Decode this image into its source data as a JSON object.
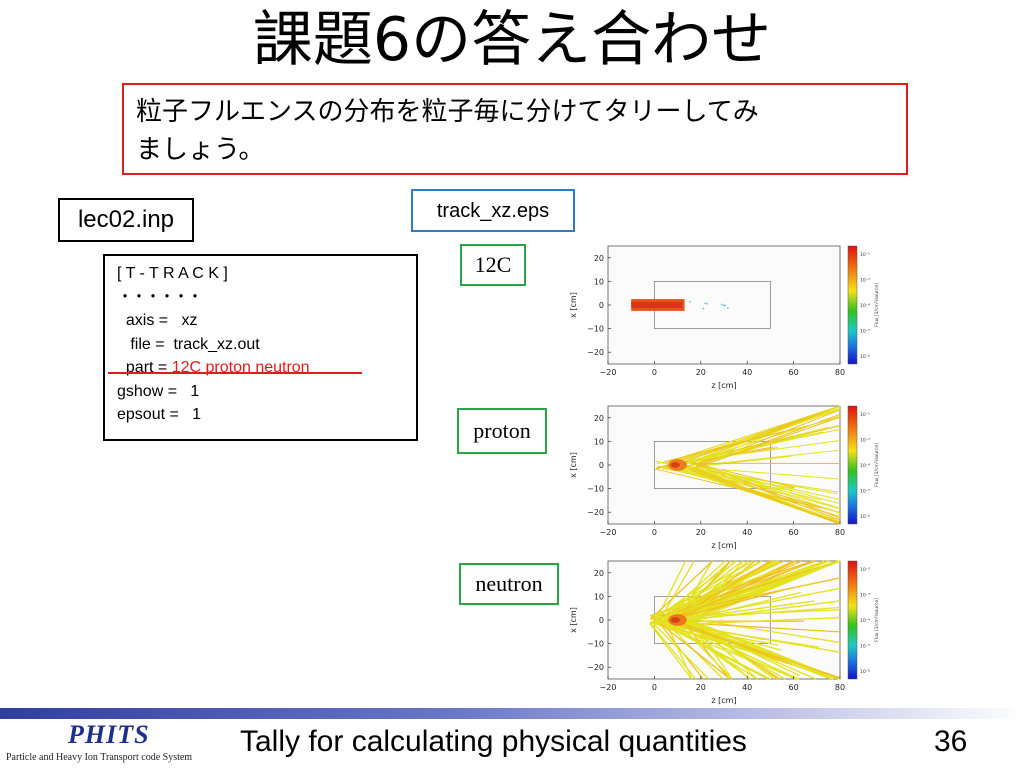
{
  "title": "課題6の答え合わせ",
  "instruction": {
    "line1": "粒子フルエンスの分布を粒子毎に分けてタリーしてみ",
    "line2": "ましょう。"
  },
  "input_file_label": "lec02.inp",
  "eps_file_label": "track_xz.eps",
  "code": {
    "section": "[ T - T R A C K ]",
    "dots": "・・・・・・",
    "axis": "  axis =   xz",
    "file": "   file =  track_xz.out",
    "part_prefix": "  part = ",
    "part_value": "12C proton neutron",
    "gshow": "gshow =   1",
    "epsout": "epsout =   1"
  },
  "plots": [
    {
      "label": "12C"
    },
    {
      "label": "proton"
    },
    {
      "label": "neutron"
    }
  ],
  "axes": {
    "xlabel": "z [cm]",
    "ylabel": "x [cm]",
    "colorbar_label": "Flux [1/cm²/source]",
    "xticks": [
      "−20",
      "0",
      "20",
      "40",
      "60",
      "80"
    ],
    "yticks": [
      "20",
      "10",
      "0",
      "−10",
      "−20"
    ],
    "cticks": [
      "10⁻²",
      "10⁻³",
      "10⁻⁴",
      "10⁻⁵",
      "10⁻⁶"
    ]
  },
  "colors": {
    "accent_red": "#e11c1c",
    "label_green": "#2aa548",
    "eps_blue": "#2e7cc4",
    "footer_blue": "#1c2f8c"
  },
  "footer": {
    "logo": "PHITS",
    "logo_sub": "Particle and Heavy Ion Transport code System",
    "title": "Tally for calculating physical quantities",
    "page": "36"
  }
}
